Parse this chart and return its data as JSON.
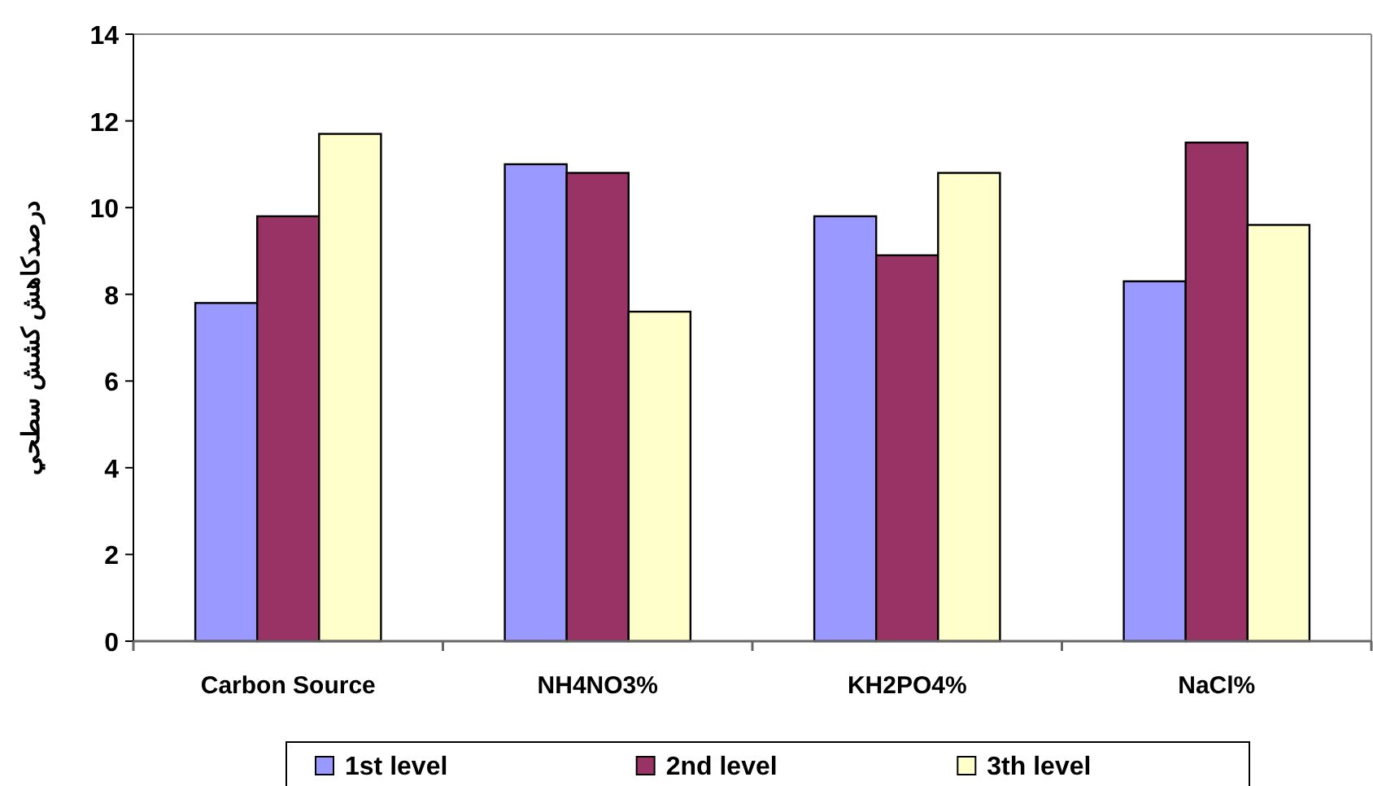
{
  "chart_data": {
    "type": "bar",
    "ylabel": "درصدکاهش کشش سطحي",
    "categories": [
      "Carbon Source",
      "NH4NO3%",
      "KH2PO4%",
      "NaCl%"
    ],
    "series": [
      {
        "name": "1st level",
        "color": "#9999ff",
        "values": [
          7.8,
          11.0,
          9.8,
          8.3
        ]
      },
      {
        "name": "2nd level",
        "color": "#993366",
        "values": [
          9.8,
          10.8,
          8.9,
          11.5
        ]
      },
      {
        "name": "3th level",
        "color": "#ffffcc",
        "values": [
          11.7,
          7.6,
          10.8,
          9.6
        ]
      }
    ],
    "ylim": [
      0,
      14
    ],
    "yticks": [
      0,
      2,
      4,
      6,
      8,
      10,
      12,
      14
    ],
    "legend": "bottom"
  }
}
